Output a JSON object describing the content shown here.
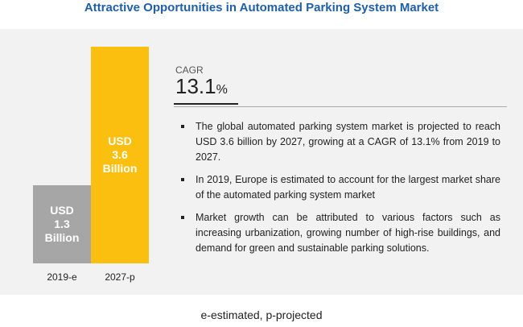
{
  "title": "Attractive Opportunities in Automated Parking System Market",
  "chart_data": {
    "type": "bar",
    "categories": [
      "2019-e",
      "2027-p"
    ],
    "values": [
      1.3,
      3.6
    ],
    "bar_labels": [
      "USD\n1.3\nBillion",
      "USD\n3.6\nBillion"
    ],
    "unit": "USD Billion",
    "colors": [
      "#a6a6a6",
      "#fbbf0f"
    ],
    "ylim": [
      0,
      3.6
    ]
  },
  "cagr": {
    "label": "CAGR",
    "value": "13.1",
    "unit": "%"
  },
  "bullets": [
    "The global automated parking system market is projected to reach USD 3.6 billion by 2027, growing at a CAGR of 13.1% from 2019 to 2027.",
    "In 2019, Europe is estimated to account for the largest market share of the automated parking system market",
    "Market growth can be attributed to various factors such as increasing urbanization, growing number of high-rise buildings, and demand for green and sustainable parking solutions."
  ],
  "footnote": "e-estimated, p-projected"
}
